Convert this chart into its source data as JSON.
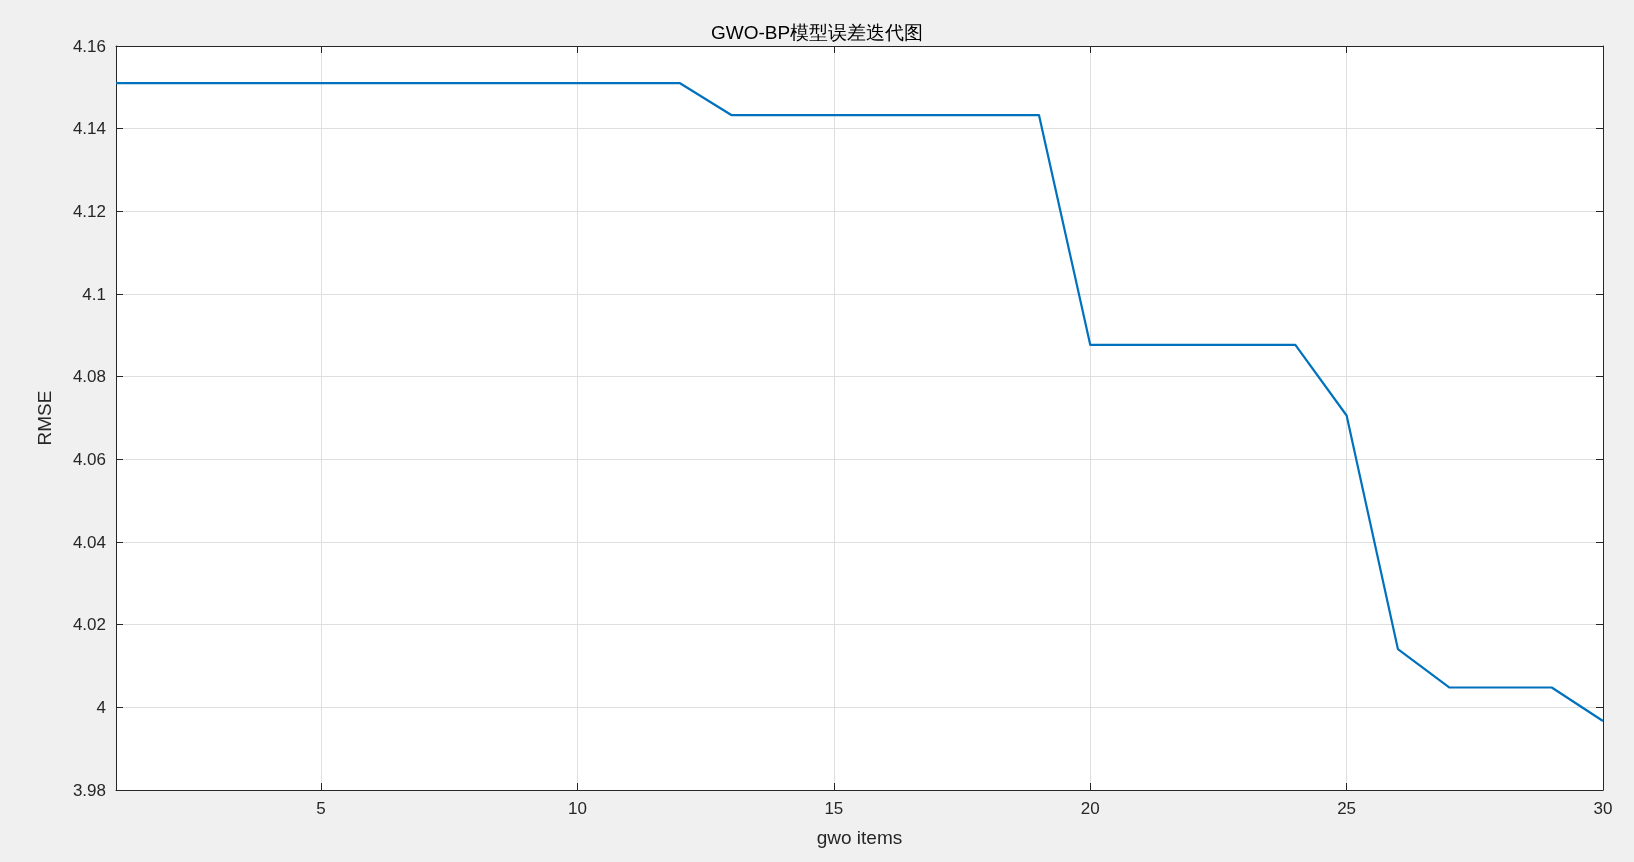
{
  "chart_data": {
    "type": "line",
    "title": "GWO-BP模型误差迭代图",
    "xlabel": "gwo items",
    "ylabel": "RMSE",
    "x": [
      1,
      2,
      3,
      4,
      5,
      6,
      7,
      8,
      9,
      10,
      11,
      12,
      13,
      14,
      15,
      16,
      17,
      18,
      19,
      20,
      21,
      22,
      23,
      24,
      25,
      26,
      27,
      28,
      29,
      30
    ],
    "series": [
      {
        "color": "#0072bd",
        "values": [
          4.151,
          4.151,
          4.151,
          4.151,
          4.151,
          4.151,
          4.151,
          4.151,
          4.151,
          4.151,
          4.151,
          4.151,
          4.1433,
          4.1433,
          4.1433,
          4.1433,
          4.1433,
          4.1433,
          4.1433,
          4.0877,
          4.0877,
          4.0877,
          4.0877,
          4.0877,
          4.0706,
          4.0141,
          4.0048,
          4.0048,
          4.0048,
          3.9967
        ]
      }
    ],
    "xlim": [
      1,
      30
    ],
    "xticks": [
      5,
      10,
      15,
      20,
      25,
      30
    ],
    "ylim": [
      3.98,
      4.16
    ],
    "yticks": [
      3.98,
      4,
      4.02,
      4.04,
      4.06,
      4.08,
      4.1,
      4.12,
      4.14,
      4.16
    ],
    "grid": true,
    "marker": "none",
    "line_style": "solid"
  }
}
